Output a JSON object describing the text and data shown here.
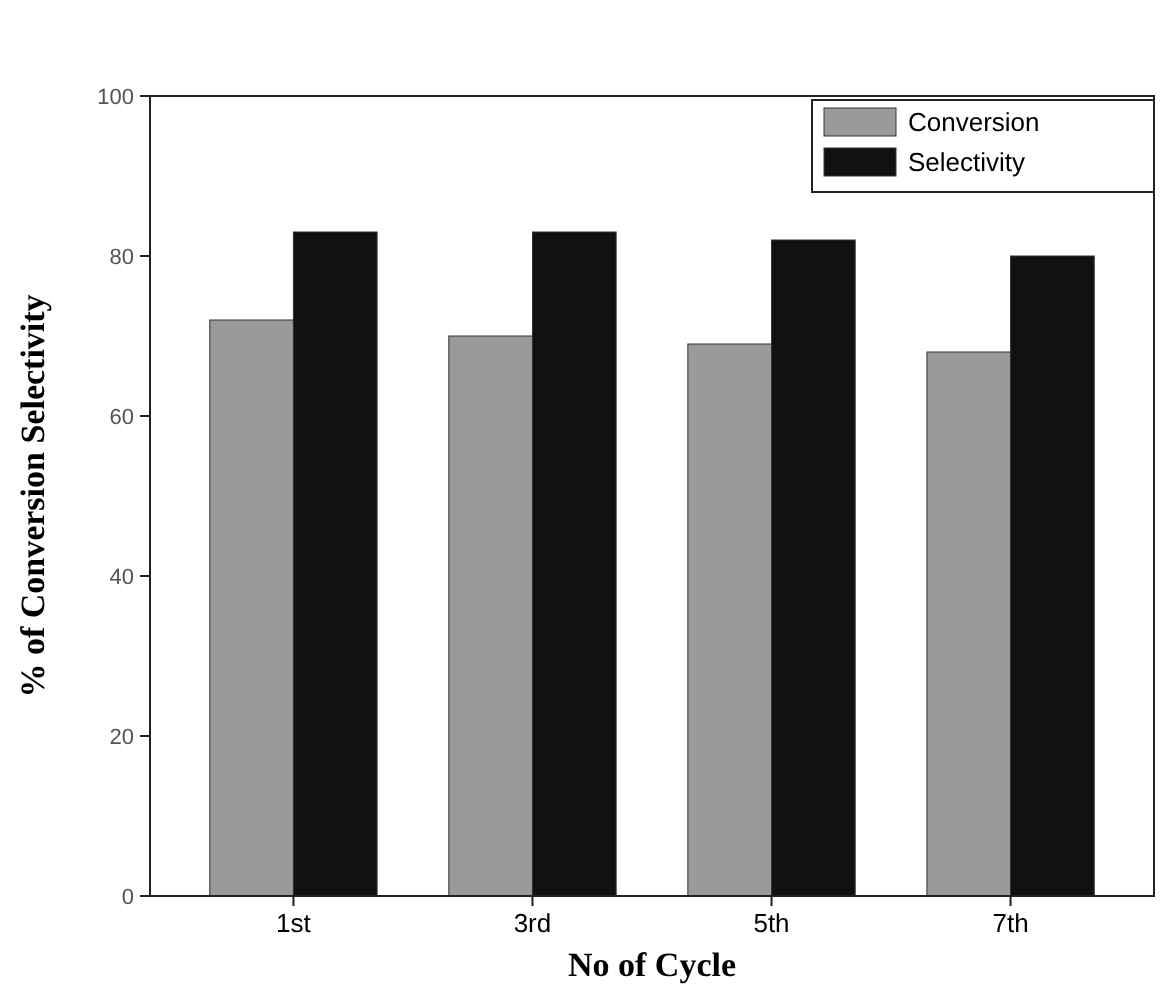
{
  "chart_data": {
    "type": "bar",
    "xlabel": "No of Cycle",
    "ylabel": "% of Conversion  Selectivity",
    "categories": [
      "1st",
      "3rd",
      "5th",
      "7th"
    ],
    "series": [
      {
        "name": "Conversion",
        "color": "#9a9a9a",
        "values": [
          72,
          70,
          69,
          68
        ]
      },
      {
        "name": "Selectivity",
        "color": "#111111",
        "values": [
          83,
          83,
          82,
          80
        ]
      }
    ],
    "ylim": [
      0,
      100
    ],
    "yticks": [
      0,
      20,
      40,
      60,
      80,
      100
    ],
    "grid": false,
    "legend": "top right"
  }
}
